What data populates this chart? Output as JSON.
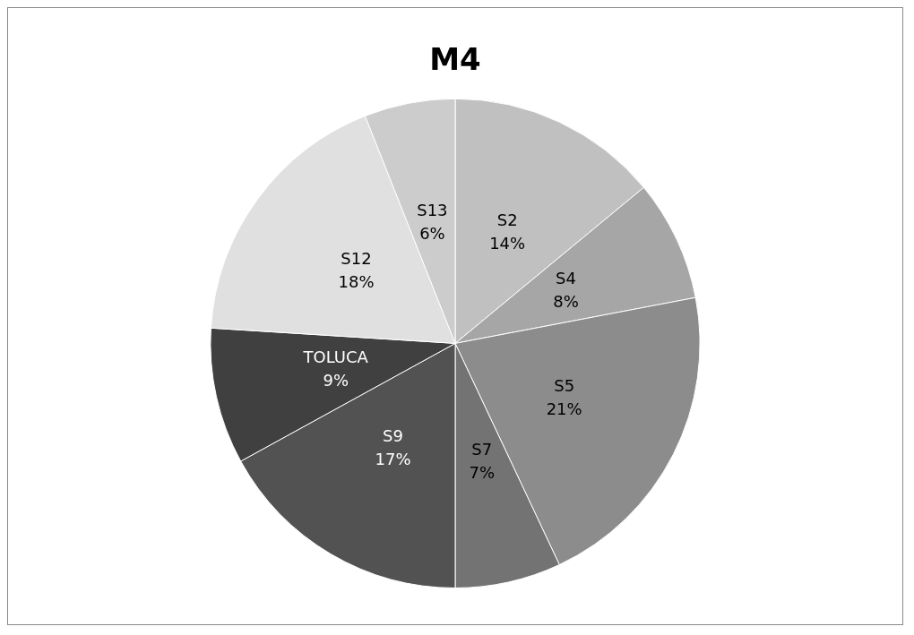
{
  "chart_data": {
    "type": "pie",
    "title": "M4",
    "categories": [
      "S2",
      "S4",
      "S5",
      "S7",
      "S9",
      "TOLUCA",
      "S12",
      "S13"
    ],
    "values": [
      14,
      8,
      21,
      7,
      17,
      9,
      18,
      6
    ],
    "value_labels": [
      "14%",
      "8%",
      "21%",
      "7%",
      "17%",
      "9%",
      "18%",
      "6%"
    ],
    "colors": [
      "#c0c0c0",
      "#a6a6a6",
      "#8c8c8c",
      "#737373",
      "#525252",
      "#404040",
      "#e0e0e0",
      "#cccccc"
    ],
    "legend": false
  }
}
